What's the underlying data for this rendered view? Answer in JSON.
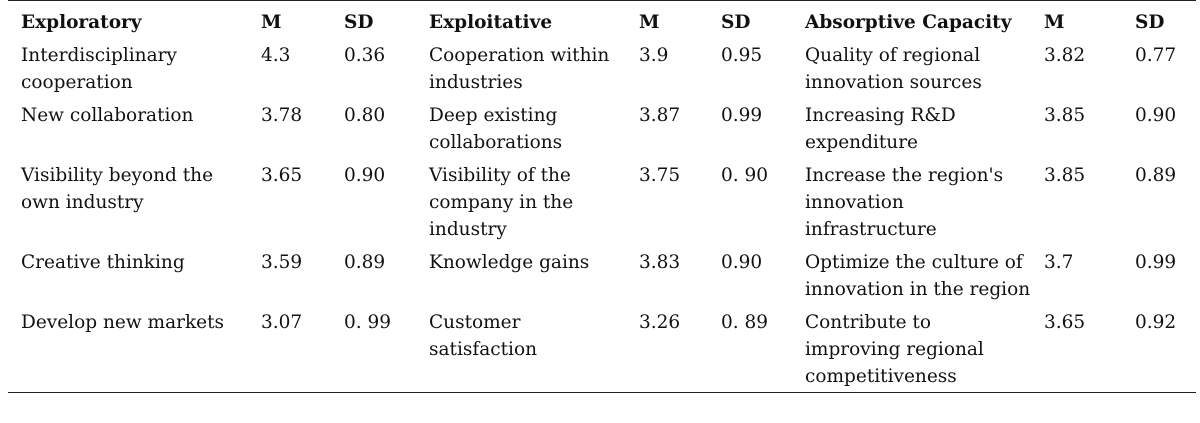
{
  "headers": [
    "Exploratory",
    "M",
    "SD",
    "Exploitative",
    "M",
    "SD",
    "Absorptive Capacity",
    "M",
    "SD"
  ],
  "rows": [
    [
      "Interdisciplinary cooperation",
      "4.3",
      "0.36",
      "Cooperation within industries",
      "3.9",
      "0.95",
      "Quality of regional innovation sources",
      "3.82",
      "0.77"
    ],
    [
      "New collaboration",
      "3.78",
      "0.80",
      "Deep existing collaborations",
      "3.87",
      "0.99",
      "Increasing R&D expenditure",
      "3.85",
      "0.90"
    ],
    [
      "Visibility beyond the own industry",
      "3.65",
      "0.90",
      "Visibility of the company in the industry",
      "3.75",
      "0. 90",
      "Increase the region's innovation infrastructure",
      "3.85",
      "0.89"
    ],
    [
      "Creative thinking",
      "3.59",
      "0.89",
      "Knowledge gains",
      "3.83",
      "0.90",
      "Optimize the culture of innovation in the region",
      "3.7",
      "0.99"
    ],
    [
      "Develop new markets",
      "3.07",
      "0. 99",
      "Customer satisfaction",
      "3.26",
      "0. 89",
      "Contribute to improving regional competitiveness",
      "3.65",
      "0.92"
    ]
  ]
}
